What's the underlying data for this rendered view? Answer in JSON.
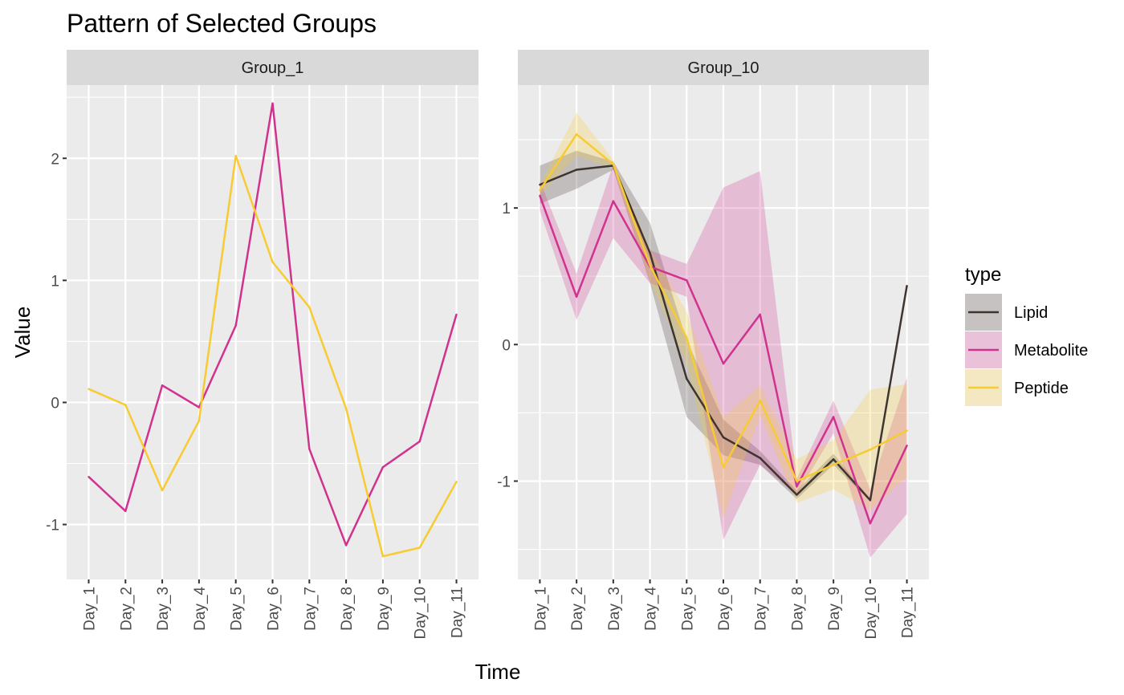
{
  "chart_data": {
    "type": "line",
    "title": "Pattern of Selected Groups",
    "xlabel": "Time",
    "ylabel": "Value",
    "categories": [
      "Day_1",
      "Day_2",
      "Day_3",
      "Day_4",
      "Day_5",
      "Day_6",
      "Day_7",
      "Day_8",
      "Day_9",
      "Day_10",
      "Day_11"
    ],
    "legend": {
      "title": "type",
      "placement": "right",
      "entries": [
        "Lipid",
        "Metabolite",
        "Peptide"
      ]
    },
    "colors": {
      "Lipid": "#3f3530",
      "Metabolite": "#d0338f",
      "Peptide": "#f7cb31",
      "panel_bg": "#ebebeb",
      "strip_bg": "#d9d9d9",
      "grid": "#ffffff"
    },
    "grid": true,
    "panels": [
      {
        "facet": "Group_1",
        "ylim": [
          -1.45,
          2.6
        ],
        "yticks": [
          -1,
          0,
          1,
          2
        ],
        "ytick_labels": [
          "-1",
          "0",
          "1",
          "2"
        ],
        "series": [
          {
            "name": "Metabolite",
            "values": [
              -0.61,
              -0.89,
              0.14,
              -0.04,
              0.63,
              2.45,
              -0.38,
              -1.17,
              -0.53,
              -0.32,
              0.72
            ]
          },
          {
            "name": "Peptide",
            "values": [
              0.11,
              -0.02,
              -0.72,
              -0.15,
              2.02,
              1.15,
              0.78,
              -0.05,
              -1.26,
              -1.19,
              -0.65
            ]
          }
        ]
      },
      {
        "facet": "Group_10",
        "ylim": [
          -1.72,
          1.9
        ],
        "yticks": [
          -1,
          0,
          1
        ],
        "ytick_labels": [
          "-1",
          "0",
          "1"
        ],
        "series": [
          {
            "name": "Lipid",
            "values": [
              1.17,
              1.28,
              1.31,
              0.67,
              -0.25,
              -0.68,
              -0.83,
              -1.1,
              -0.84,
              -1.14,
              0.43
            ],
            "lower": [
              1.03,
              1.14,
              1.28,
              0.45,
              -0.53,
              -0.81,
              -0.88,
              -1.13,
              -0.88,
              -1.15,
              0.43
            ],
            "upper": [
              1.31,
              1.42,
              1.34,
              0.89,
              0.03,
              -0.55,
              -0.78,
              -1.07,
              -0.8,
              -1.13,
              0.43
            ]
          },
          {
            "name": "Metabolite",
            "values": [
              1.09,
              0.35,
              1.05,
              0.57,
              0.47,
              -0.14,
              0.22,
              -1.04,
              -0.53,
              -1.31,
              -0.74
            ],
            "lower": [
              0.98,
              0.18,
              0.78,
              0.45,
              0.35,
              -1.43,
              -0.88,
              -1.1,
              -0.65,
              -1.56,
              -1.24
            ],
            "upper": [
              1.2,
              0.52,
              1.32,
              0.69,
              0.59,
              1.15,
              1.27,
              -0.98,
              -0.41,
              -1.06,
              -0.24
            ]
          },
          {
            "name": "Peptide",
            "values": [
              1.13,
              1.54,
              1.32,
              0.58,
              0.05,
              -0.9,
              -0.41,
              -1.0,
              -0.88,
              -0.77,
              -0.63
            ],
            "lower": [
              1.09,
              1.38,
              1.29,
              0.46,
              -0.14,
              -1.27,
              -0.52,
              -1.16,
              -1.06,
              -1.21,
              -0.97
            ],
            "upper": [
              1.17,
              1.7,
              1.35,
              0.7,
              0.24,
              -0.53,
              -0.3,
              -0.84,
              -0.7,
              -0.33,
              -0.29
            ]
          }
        ]
      }
    ]
  }
}
